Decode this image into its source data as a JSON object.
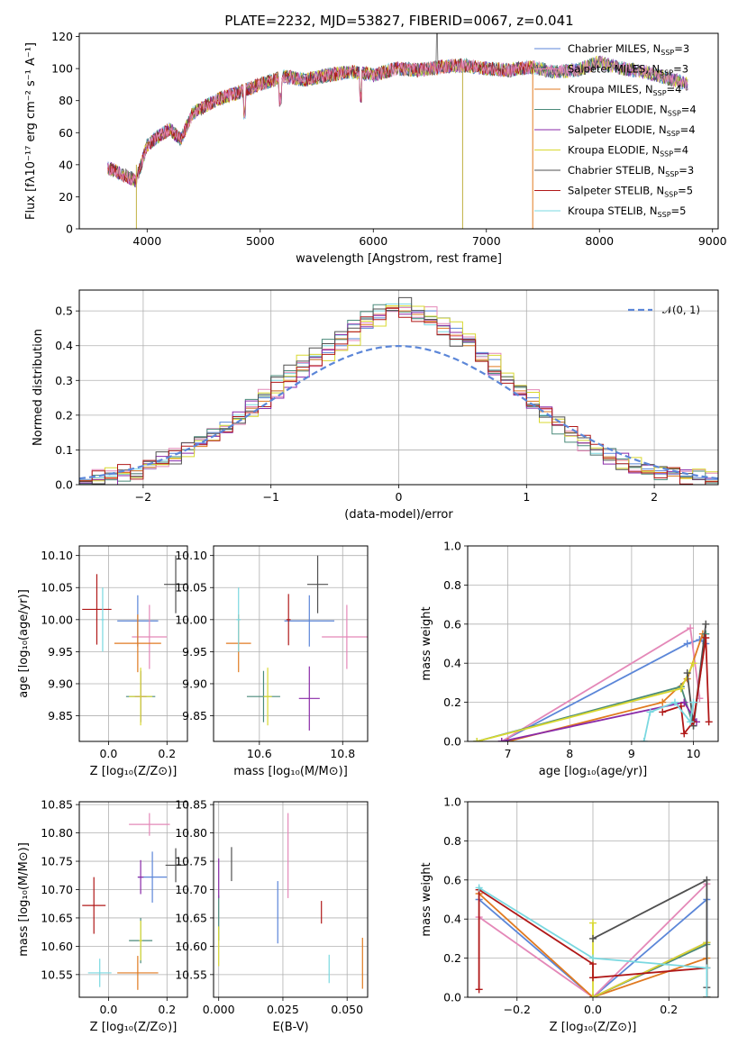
{
  "figure": {
    "title": "PLATE=2232, MJD=53827, FIBERID=0067, z=0.041",
    "colors": [
      "#5b86d8",
      "#e488b8",
      "#e07a20",
      "#4a8a7a",
      "#8a2aa8",
      "#d8d830",
      "#505050",
      "#b01818",
      "#7ad8e0"
    ]
  },
  "chart_data": [
    {
      "id": "spectrum",
      "type": "line",
      "title": "PLATE=2232, MJD=53827, FIBERID=0067, z=0.041",
      "xlabel": "wavelength [Angstrom, rest frame]",
      "ylabel": "Flux [fλ10⁻¹⁷ erg cm⁻² s⁻¹ A⁻¹]",
      "xlim": [
        3400,
        9050
      ],
      "ylim": [
        0,
        122
      ],
      "xticks": [
        4000,
        5000,
        6000,
        7000,
        8000,
        9000
      ],
      "yticks": [
        0,
        20,
        40,
        60,
        80,
        100,
        120
      ],
      "grid": false,
      "legend_position": "top-right",
      "series": [
        {
          "name": "Chabrier MILES, N_SSP=3"
        },
        {
          "name": "Salpeter MILES, N_SSP=3"
        },
        {
          "name": "Kroupa MILES, N_SSP=4"
        },
        {
          "name": "Chabrier ELODIE, N_SSP=4"
        },
        {
          "name": "Salpeter ELODIE, N_SSP=4"
        },
        {
          "name": "Kroupa ELODIE, N_SSP=4"
        },
        {
          "name": "Chabrier STELIB, N_SSP=3"
        },
        {
          "name": "Salpeter STELIB, N_SSP=5"
        },
        {
          "name": "Kroupa STELIB, N_SSP=5"
        }
      ],
      "continuum": {
        "x": [
          3650,
          3750,
          3900,
          4000,
          4100,
          4200,
          4300,
          4400,
          4600,
          4800,
          5000,
          5200,
          5400,
          5600,
          5800,
          6000,
          6200,
          6400,
          6600,
          6800,
          7000,
          7200,
          7400,
          7600,
          7800,
          8000,
          8200,
          8400,
          8600,
          8800
        ],
        "y": [
          38,
          35,
          30,
          52,
          58,
          62,
          56,
          72,
          80,
          85,
          90,
          95,
          93,
          96,
          98,
          96,
          100,
          99,
          101,
          102,
          100,
          99,
          101,
          98,
          99,
          104,
          100,
          98,
          94,
          90
        ]
      }
    },
    {
      "id": "residuals",
      "type": "histogram",
      "xlabel": "(data-model)/error",
      "ylabel": "Normed distribution",
      "xlim": [
        -2.5,
        2.5
      ],
      "ylim": [
        0,
        0.56
      ],
      "xticks": [
        -2,
        -1,
        0,
        1,
        2
      ],
      "yticks": [
        0.0,
        0.1,
        0.2,
        0.3,
        0.4,
        0.5
      ],
      "grid": true,
      "legend_position": "top-right",
      "reference_curve": {
        "name": "𝒩(0, 1)",
        "mean": 0,
        "sigma": 1
      },
      "histogram_series": [
        {
          "bin_start": -2.5,
          "bin_width": 0.1,
          "values": [
            0.015,
            0.02,
            0.03,
            0.03,
            0.04,
            0.045,
            0.06,
            0.09,
            0.1,
            0.12,
            0.15,
            0.18,
            0.19,
            0.22,
            0.25,
            0.27,
            0.31,
            0.35,
            0.36,
            0.38,
            0.4,
            0.42,
            0.45,
            0.48,
            0.5,
            0.51,
            0.5,
            0.5,
            0.48,
            0.45,
            0.42,
            0.38,
            0.36,
            0.3,
            0.28,
            0.25,
            0.2,
            0.18,
            0.14,
            0.12,
            0.1,
            0.09,
            0.07,
            0.06,
            0.045,
            0.04,
            0.03,
            0.025,
            0.02,
            0.015
          ]
        },
        {
          "bin_start": -2.5,
          "bin_width": 0.1,
          "values": [
            0.01,
            0.02,
            0.025,
            0.03,
            0.045,
            0.05,
            0.07,
            0.08,
            0.1,
            0.13,
            0.14,
            0.17,
            0.2,
            0.23,
            0.26,
            0.3,
            0.32,
            0.34,
            0.37,
            0.4,
            0.43,
            0.46,
            0.48,
            0.5,
            0.52,
            0.52,
            0.48,
            0.46,
            0.44,
            0.42,
            0.4,
            0.37,
            0.33,
            0.3,
            0.26,
            0.23,
            0.2,
            0.17,
            0.14,
            0.12,
            0.09,
            0.08,
            0.06,
            0.05,
            0.04,
            0.03,
            0.025,
            0.02,
            0.015,
            0.01
          ]
        },
        {
          "bin_start": -2.5,
          "bin_width": 0.1,
          "values": [
            0.01,
            0.015,
            0.02,
            0.035,
            0.04,
            0.05,
            0.06,
            0.075,
            0.1,
            0.11,
            0.14,
            0.16,
            0.19,
            0.22,
            0.24,
            0.27,
            0.3,
            0.33,
            0.36,
            0.39,
            0.42,
            0.44,
            0.46,
            0.49,
            0.51,
            0.5,
            0.49,
            0.47,
            0.45,
            0.43,
            0.4,
            0.36,
            0.34,
            0.31,
            0.27,
            0.24,
            0.21,
            0.18,
            0.15,
            0.12,
            0.1,
            0.08,
            0.07,
            0.05,
            0.04,
            0.035,
            0.025,
            0.02,
            0.015,
            0.01
          ]
        }
      ]
    },
    {
      "id": "age-vs-Z",
      "type": "scatter",
      "xlabel": "Z [log₁₀(Z/Z⊙)]",
      "ylabel": "age  [log₁₀(age/yr)]",
      "xlim": [
        -0.1,
        0.27
      ],
      "ylim": [
        9.81,
        10.115
      ],
      "xticks": [
        0.0,
        0.2
      ],
      "yticks": [
        9.85,
        9.9,
        9.95,
        10.0,
        10.05,
        10.1
      ],
      "grid": true,
      "points": [
        {
          "x": 0.1,
          "y": 9.998,
          "xerr": 0.07,
          "yerr": 0.04,
          "color": 0
        },
        {
          "x": 0.14,
          "y": 9.973,
          "xerr": 0.06,
          "yerr": 0.05,
          "color": 1
        },
        {
          "x": 0.1,
          "y": 9.963,
          "xerr": 0.08,
          "yerr": 0.045,
          "color": 2
        },
        {
          "x": 0.11,
          "y": 9.88,
          "xerr": 0.05,
          "yerr": 0.04,
          "color": 3
        },
        {
          "x": 0.11,
          "y": 9.88,
          "xerr": 0.02,
          "yerr": 0.04,
          "color": 4
        },
        {
          "x": 0.11,
          "y": 9.88,
          "xerr": 0.04,
          "yerr": 0.045,
          "color": 5
        },
        {
          "x": 0.23,
          "y": 10.055,
          "xerr": 0.04,
          "yerr": 0.045,
          "color": 6
        },
        {
          "x": -0.04,
          "y": 10.016,
          "xerr": 0.05,
          "yerr": 0.055,
          "color": 7
        },
        {
          "x": -0.02,
          "y": 10.0,
          "xerr": 0.005,
          "yerr": 0.05,
          "color": 8
        }
      ]
    },
    {
      "id": "age-vs-mass",
      "type": "scatter",
      "xlabel": "mass [log₁₀(M/M⊙)]",
      "ylabel": "",
      "xlim": [
        10.49,
        10.86
      ],
      "ylim": [
        9.81,
        10.115
      ],
      "xticks": [
        10.6,
        10.8
      ],
      "yticks": [
        9.85,
        9.9,
        9.95,
        10.0,
        10.05,
        10.1
      ],
      "grid": true,
      "points": [
        {
          "x": 10.72,
          "y": 9.998,
          "xerr": 0.06,
          "yerr": 0.04,
          "color": 0
        },
        {
          "x": 10.81,
          "y": 9.973,
          "xerr": 0.06,
          "yerr": 0.05,
          "color": 1
        },
        {
          "x": 10.55,
          "y": 9.963,
          "xerr": 0.03,
          "yerr": 0.045,
          "color": 2
        },
        {
          "x": 10.61,
          "y": 9.88,
          "xerr": 0.04,
          "yerr": 0.04,
          "color": 3
        },
        {
          "x": 10.72,
          "y": 9.877,
          "xerr": 0.025,
          "yerr": 0.05,
          "color": 4
        },
        {
          "x": 10.62,
          "y": 9.88,
          "xerr": 0.01,
          "yerr": 0.045,
          "color": 5
        },
        {
          "x": 10.74,
          "y": 10.055,
          "xerr": 0.025,
          "yerr": 0.045,
          "color": 6
        },
        {
          "x": 10.67,
          "y": 10.0,
          "xerr": 0.005,
          "yerr": 0.04,
          "color": 7
        },
        {
          "x": 10.55,
          "y": 10.0,
          "xerr": 0.005,
          "yerr": 0.05,
          "color": 8
        }
      ]
    },
    {
      "id": "weight-vs-age",
      "type": "line",
      "xlabel": "age  [log₁₀(age/yr)]",
      "ylabel": "mass weight",
      "xlim": [
        6.35,
        10.4
      ],
      "ylim": [
        0,
        1.0
      ],
      "xticks": [
        7,
        8,
        9,
        10
      ],
      "yticks": [
        0.0,
        0.2,
        0.4,
        0.6,
        0.8,
        1.0
      ],
      "grid": true,
      "series": [
        {
          "color": 0,
          "x": [
            6.9,
            9.9,
            10.1,
            10.2
          ],
          "y": [
            0.0,
            0.5,
            0.52,
            0.5
          ]
        },
        {
          "color": 1,
          "x": [
            6.9,
            9.95,
            10.1
          ],
          "y": [
            0.0,
            0.58,
            0.22
          ]
        },
        {
          "color": 2,
          "x": [
            7.0,
            9.5,
            9.9,
            10.15
          ],
          "y": [
            0.0,
            0.2,
            0.32,
            0.55
          ]
        },
        {
          "color": 3,
          "x": [
            6.5,
            9.8,
            10.0,
            10.2
          ],
          "y": [
            0.0,
            0.28,
            0.08,
            0.55
          ]
        },
        {
          "color": 4,
          "x": [
            6.9,
            9.85,
            10.05
          ],
          "y": [
            0.0,
            0.2,
            0.1
          ]
        },
        {
          "color": 5,
          "x": [
            6.5,
            9.8,
            10.0
          ],
          "y": [
            0.0,
            0.27,
            0.4
          ]
        },
        {
          "color": 6,
          "x": [
            9.9,
            10.0,
            10.2
          ],
          "y": [
            0.35,
            0.08,
            0.6
          ]
        },
        {
          "color": 7,
          "x": [
            9.5,
            9.8,
            9.85,
            10.0,
            10.2,
            10.25
          ],
          "y": [
            0.15,
            0.18,
            0.04,
            0.1,
            0.53,
            0.1
          ]
        },
        {
          "color": 8,
          "x": [
            9.2,
            9.3,
            9.7,
            9.95,
            10.0
          ],
          "y": [
            0.0,
            0.15,
            0.2,
            0.1,
            0.2
          ]
        }
      ]
    },
    {
      "id": "mass-vs-Z",
      "type": "scatter",
      "xlabel": "Z [log₁₀(Z/Z⊙)]",
      "ylabel": "mass [log₁₀(M/M⊙)]",
      "xlim": [
        -0.1,
        0.27
      ],
      "ylim": [
        10.51,
        10.855
      ],
      "xticks": [
        0.0,
        0.2
      ],
      "yticks": [
        10.55,
        10.6,
        10.65,
        10.7,
        10.75,
        10.8,
        10.85
      ],
      "grid": true,
      "points": [
        {
          "x": 0.15,
          "y": 10.722,
          "xerr": 0.05,
          "yerr": 0.045,
          "color": 0
        },
        {
          "x": 0.14,
          "y": 10.815,
          "xerr": 0.07,
          "yerr": 0.02,
          "color": 1
        },
        {
          "x": 0.1,
          "y": 10.553,
          "xerr": 0.07,
          "yerr": 0.03,
          "color": 2
        },
        {
          "x": 0.11,
          "y": 10.61,
          "xerr": 0.04,
          "yerr": 0.04,
          "color": 3
        },
        {
          "x": 0.11,
          "y": 10.722,
          "xerr": 0.01,
          "yerr": 0.03,
          "color": 4
        },
        {
          "x": 0.11,
          "y": 10.61,
          "xerr": 0.005,
          "yerr": 0.035,
          "color": 5
        },
        {
          "x": 0.23,
          "y": 10.743,
          "xerr": 0.035,
          "yerr": 0.03,
          "color": 6
        },
        {
          "x": -0.05,
          "y": 10.672,
          "xerr": 0.04,
          "yerr": 0.05,
          "color": 7
        },
        {
          "x": -0.03,
          "y": 10.553,
          "xerr": 0.04,
          "yerr": 0.025,
          "color": 8
        }
      ]
    },
    {
      "id": "mass-vs-EBV",
      "type": "scatter",
      "xlabel": "E(B-V)",
      "ylabel": "",
      "xlim": [
        -0.002,
        0.058
      ],
      "ylim": [
        10.51,
        10.855
      ],
      "xticks": [
        0.0,
        0.025,
        0.05
      ],
      "yticks": [
        10.55,
        10.6,
        10.65,
        10.7,
        10.75,
        10.8,
        10.85
      ],
      "grid": true,
      "points": [
        {
          "x": 0.023,
          "y": 10.66,
          "xerr": 0,
          "yerr": 0.055,
          "color": 0
        },
        {
          "x": 0.027,
          "y": 10.76,
          "xerr": 0,
          "yerr": 0.075,
          "color": 1
        },
        {
          "x": 0.056,
          "y": 10.57,
          "xerr": 0,
          "yerr": 0.045,
          "color": 2
        },
        {
          "x": 0.0,
          "y": 10.65,
          "xerr": 0,
          "yerr": 0.04,
          "color": 3
        },
        {
          "x": 0.0,
          "y": 10.72,
          "xerr": 0,
          "yerr": 0.035,
          "color": 4
        },
        {
          "x": 0.0,
          "y": 10.6,
          "xerr": 0,
          "yerr": 0.035,
          "color": 5
        },
        {
          "x": 0.005,
          "y": 10.745,
          "xerr": 0,
          "yerr": 0.03,
          "color": 6
        },
        {
          "x": 0.04,
          "y": 10.66,
          "xerr": 0,
          "yerr": 0.02,
          "color": 7
        },
        {
          "x": 0.043,
          "y": 10.56,
          "xerr": 0,
          "yerr": 0.025,
          "color": 8
        }
      ]
    },
    {
      "id": "weight-vs-Z",
      "type": "line",
      "xlabel": "Z [log₁₀(Z/Z⊙)]",
      "ylabel": "mass weight",
      "xlim": [
        -0.33,
        0.33
      ],
      "ylim": [
        0,
        1.0
      ],
      "xticks": [
        -0.2,
        0.0,
        0.2
      ],
      "yticks": [
        0.0,
        0.2,
        0.4,
        0.6,
        0.8,
        1.0
      ],
      "grid": true,
      "series": [
        {
          "color": 0,
          "x": [
            -0.3,
            0.0,
            0.3,
            0.3
          ],
          "y": [
            0.5,
            0.0,
            0.5,
            0.0
          ]
        },
        {
          "color": 1,
          "x": [
            -0.3,
            0.0,
            0.3
          ],
          "y": [
            0.41,
            0.0,
            0.58
          ]
        },
        {
          "color": 2,
          "x": [
            -0.3,
            0.0,
            0.3,
            0.3
          ],
          "y": [
            0.53,
            0.0,
            0.2,
            0.0
          ]
        },
        {
          "color": 3,
          "x": [
            0.0,
            0.3,
            0.3
          ],
          "y": [
            0.0,
            0.27,
            0.0
          ]
        },
        {
          "color": 4,
          "x": [
            0.0,
            0.3
          ],
          "y": [
            0.0,
            0.28
          ]
        },
        {
          "color": 5,
          "x": [
            0.0,
            0.0,
            0.3,
            0.3
          ],
          "y": [
            0.38,
            0.0,
            0.28,
            0.0
          ]
        },
        {
          "color": 6,
          "x": [
            0.0,
            0.3,
            0.3
          ],
          "y": [
            0.3,
            0.6,
            0.05
          ]
        },
        {
          "color": 7,
          "x": [
            -0.3,
            -0.3,
            0.0,
            0.0,
            0.3,
            0.3
          ],
          "y": [
            0.04,
            0.55,
            0.17,
            0.1,
            0.15,
            0.0
          ]
        },
        {
          "color": 8,
          "x": [
            -0.3,
            0.0,
            0.3,
            0.3
          ],
          "y": [
            0.56,
            0.2,
            0.15,
            0.0
          ]
        }
      ]
    }
  ]
}
